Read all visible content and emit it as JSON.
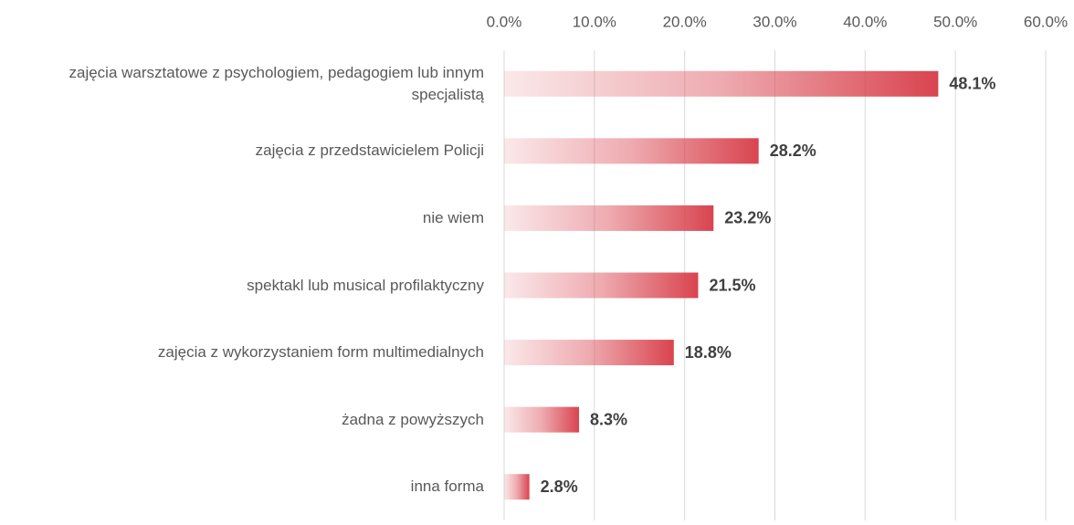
{
  "chart_data": {
    "type": "bar",
    "orientation": "horizontal",
    "categories": [
      "zajęcia warsztatowe z psychologiem, pedagogiem lub innym specjalistą",
      "zajęcia z przedstawicielem Policji",
      "nie wiem",
      "spektakl lub musical profilaktyczny",
      "zajęcia z wykorzystaniem form multimedialnych",
      "żadna z powyższych",
      "inna forma"
    ],
    "values": [
      48.1,
      28.2,
      23.2,
      21.5,
      18.8,
      8.3,
      2.8
    ],
    "value_labels": [
      "48.1%",
      "28.2%",
      "23.2%",
      "21.5%",
      "18.8%",
      "8.3%",
      "2.8%"
    ],
    "color": "#d9444f",
    "xlim": [
      0,
      60
    ],
    "xticks": [
      {
        "value": 0,
        "label": "0.0%"
      },
      {
        "value": 10,
        "label": "10.0%"
      },
      {
        "value": 20,
        "label": "20.0%"
      },
      {
        "value": 30,
        "label": "30.0%"
      },
      {
        "value": 40,
        "label": "40.0%"
      },
      {
        "value": 50,
        "label": "50.0%"
      },
      {
        "value": 60,
        "label": "60.0%"
      }
    ],
    "grid": true
  }
}
